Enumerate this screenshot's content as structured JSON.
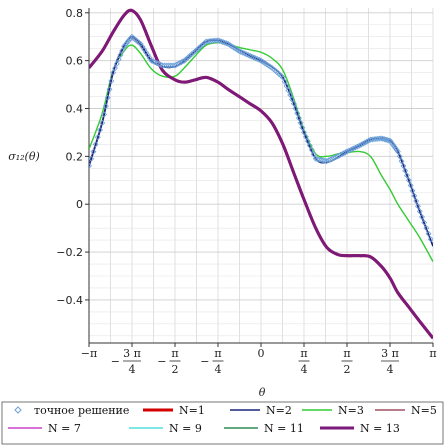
{
  "chart_data": {
    "type": "line",
    "title": "",
    "xlabel": "θ",
    "ylabel": "σ₁₂(θ)",
    "xlim": [
      -3.14159,
      3.14159
    ],
    "ylim": [
      -0.58,
      0.82
    ],
    "grid": true,
    "legend_placement": "bottom",
    "x_ticks": [
      {
        "v": -3.14159,
        "num": "−π",
        "den": ""
      },
      {
        "v": -2.35619,
        "num": "3 π",
        "den": "4",
        "neg": true
      },
      {
        "v": -1.5708,
        "num": "π",
        "den": "2",
        "neg": true
      },
      {
        "v": -0.7854,
        "num": "π",
        "den": "4",
        "neg": true
      },
      {
        "v": 0,
        "num": "0",
        "den": ""
      },
      {
        "v": 0.7854,
        "num": "π",
        "den": "4"
      },
      {
        "v": 1.5708,
        "num": "π",
        "den": "2"
      },
      {
        "v": 2.35619,
        "num": "3 π",
        "den": "4"
      },
      {
        "v": 3.14159,
        "num": "π",
        "den": ""
      }
    ],
    "y_ticks": [
      "−0.4",
      "−0.2",
      "0",
      "0.2",
      "0.4",
      "0.6",
      "0.8"
    ],
    "y_tick_values": [
      -0.4,
      -0.2,
      0,
      0.2,
      0.4,
      0.6,
      0.8
    ],
    "x": [
      -3.14159,
      -2.9,
      -2.7,
      -2.5,
      -2.36,
      -2.2,
      -2.0,
      -1.8,
      -1.57,
      -1.4,
      -1.2,
      -1.0,
      -0.785,
      -0.6,
      -0.4,
      -0.2,
      0.0,
      0.2,
      0.4,
      0.6,
      0.785,
      1.0,
      1.2,
      1.4,
      1.57,
      1.8,
      2.0,
      2.2,
      2.36,
      2.5,
      2.7,
      2.9,
      3.14159
    ],
    "series": [
      {
        "name": "точное решение",
        "color": "#6aa0d8",
        "style": "marker",
        "values": [
          0.16,
          0.34,
          0.55,
          0.66,
          0.7,
          0.67,
          0.6,
          0.58,
          0.58,
          0.6,
          0.64,
          0.68,
          0.685,
          0.67,
          0.64,
          0.62,
          0.6,
          0.57,
          0.53,
          0.42,
          0.3,
          0.19,
          0.18,
          0.2,
          0.22,
          0.245,
          0.27,
          0.275,
          0.265,
          0.22,
          0.1,
          -0.03,
          -0.17
        ]
      },
      {
        "name": "N=1",
        "color": "#d40000",
        "style": "line",
        "width": 3,
        "values": [
          0.57,
          0.64,
          0.72,
          0.79,
          0.81,
          0.77,
          0.66,
          0.56,
          0.52,
          0.51,
          0.52,
          0.53,
          0.51,
          0.48,
          0.45,
          0.42,
          0.39,
          0.34,
          0.25,
          0.13,
          0.02,
          -0.1,
          -0.18,
          -0.21,
          -0.215,
          -0.215,
          -0.22,
          -0.26,
          -0.31,
          -0.37,
          -0.43,
          -0.49,
          -0.56
        ]
      },
      {
        "name": "N=2",
        "color": "#1a237e",
        "style": "line",
        "width": 1.6,
        "values": [
          0.16,
          0.34,
          0.55,
          0.66,
          0.7,
          0.67,
          0.6,
          0.575,
          0.575,
          0.6,
          0.64,
          0.68,
          0.685,
          0.67,
          0.645,
          0.62,
          0.6,
          0.575,
          0.53,
          0.42,
          0.3,
          0.19,
          0.175,
          0.195,
          0.22,
          0.245,
          0.27,
          0.275,
          0.265,
          0.22,
          0.1,
          -0.03,
          -0.175
        ]
      },
      {
        "name": "N=3",
        "color": "#33cc33",
        "style": "line",
        "width": 1.4,
        "values": [
          0.23,
          0.38,
          0.56,
          0.64,
          0.665,
          0.63,
          0.565,
          0.535,
          0.535,
          0.57,
          0.62,
          0.665,
          0.675,
          0.67,
          0.655,
          0.645,
          0.635,
          0.61,
          0.56,
          0.44,
          0.31,
          0.21,
          0.2,
          0.21,
          0.215,
          0.22,
          0.2,
          0.12,
          0.06,
          0.0,
          -0.07,
          -0.14,
          -0.24
        ]
      },
      {
        "name": "N=5",
        "color": "#a05060",
        "style": "line",
        "width": 1.4,
        "values": [
          0.165,
          0.345,
          0.555,
          0.665,
          0.695,
          0.665,
          0.6,
          0.575,
          0.575,
          0.6,
          0.64,
          0.68,
          0.685,
          0.67,
          0.645,
          0.62,
          0.6,
          0.575,
          0.53,
          0.42,
          0.3,
          0.19,
          0.175,
          0.195,
          0.22,
          0.245,
          0.27,
          0.275,
          0.265,
          0.22,
          0.1,
          -0.03,
          -0.175
        ]
      },
      {
        "name": "N = 7",
        "color": "#cc44cc",
        "style": "line",
        "width": 1.4,
        "values": [
          0.165,
          0.345,
          0.555,
          0.665,
          0.695,
          0.665,
          0.6,
          0.575,
          0.575,
          0.6,
          0.64,
          0.68,
          0.685,
          0.67,
          0.645,
          0.62,
          0.6,
          0.575,
          0.53,
          0.42,
          0.3,
          0.19,
          0.175,
          0.195,
          0.22,
          0.245,
          0.27,
          0.275,
          0.265,
          0.22,
          0.1,
          -0.03,
          -0.175
        ]
      },
      {
        "name": "N = 9",
        "color": "#55dddd",
        "style": "line",
        "width": 1.4,
        "values": [
          0.165,
          0.345,
          0.555,
          0.665,
          0.695,
          0.665,
          0.6,
          0.575,
          0.575,
          0.6,
          0.64,
          0.68,
          0.685,
          0.67,
          0.645,
          0.62,
          0.6,
          0.575,
          0.53,
          0.42,
          0.3,
          0.19,
          0.175,
          0.195,
          0.22,
          0.245,
          0.27,
          0.275,
          0.265,
          0.22,
          0.1,
          -0.03,
          -0.175
        ]
      },
      {
        "name": "N = 11",
        "color": "#2e8b57",
        "style": "line",
        "width": 1.4,
        "values": [
          0.165,
          0.345,
          0.555,
          0.665,
          0.695,
          0.665,
          0.6,
          0.575,
          0.575,
          0.6,
          0.64,
          0.68,
          0.685,
          0.67,
          0.645,
          0.62,
          0.6,
          0.575,
          0.53,
          0.42,
          0.3,
          0.19,
          0.175,
          0.195,
          0.22,
          0.245,
          0.27,
          0.275,
          0.265,
          0.22,
          0.1,
          -0.03,
          -0.175
        ]
      },
      {
        "name": "N = 13",
        "color": "#7b1a7b",
        "style": "line",
        "width": 3,
        "values": [
          0.57,
          0.64,
          0.72,
          0.79,
          0.81,
          0.77,
          0.66,
          0.56,
          0.52,
          0.51,
          0.52,
          0.53,
          0.51,
          0.48,
          0.45,
          0.42,
          0.39,
          0.34,
          0.25,
          0.13,
          0.02,
          -0.1,
          -0.18,
          -0.21,
          -0.215,
          -0.215,
          -0.22,
          -0.26,
          -0.31,
          -0.37,
          -0.43,
          -0.49,
          -0.56
        ]
      }
    ]
  }
}
